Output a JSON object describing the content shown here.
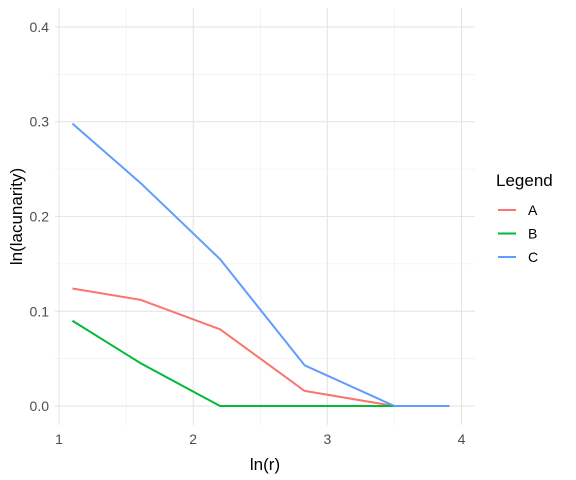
{
  "chart_data": {
    "type": "line",
    "title": "",
    "xlabel": "ln(r)",
    "ylabel": "ln(lacunarity)",
    "xlim": [
      0.97,
      4.1
    ],
    "ylim": [
      -0.02,
      0.42
    ],
    "x_ticks": [
      1,
      2,
      3,
      4
    ],
    "x_tick_labels": [
      "1",
      "2",
      "3",
      "4"
    ],
    "y_ticks": [
      0.0,
      0.1,
      0.2,
      0.3,
      0.4
    ],
    "y_tick_labels": [
      "0.0",
      "0.1",
      "0.2",
      "0.3",
      "0.4"
    ],
    "grid": true,
    "legend": {
      "title": "Legend",
      "position": "right"
    },
    "series": [
      {
        "name": "A",
        "color": "#F8766D",
        "x": [
          1.1,
          1.61,
          2.2,
          2.83,
          3.5,
          3.91
        ],
        "y": [
          0.124,
          0.112,
          0.081,
          0.016,
          0.0,
          0.0
        ]
      },
      {
        "name": "B",
        "color": "#00BA38",
        "x": [
          1.1,
          1.61,
          2.2,
          2.83,
          3.5,
          3.91
        ],
        "y": [
          0.09,
          0.045,
          0.0,
          0.0,
          0.0,
          0.0
        ]
      },
      {
        "name": "C",
        "color": "#619CFF",
        "x": [
          1.1,
          1.61,
          2.2,
          2.83,
          3.5,
          3.91
        ],
        "y": [
          0.298,
          0.235,
          0.155,
          0.043,
          0.0,
          0.0
        ]
      }
    ]
  }
}
